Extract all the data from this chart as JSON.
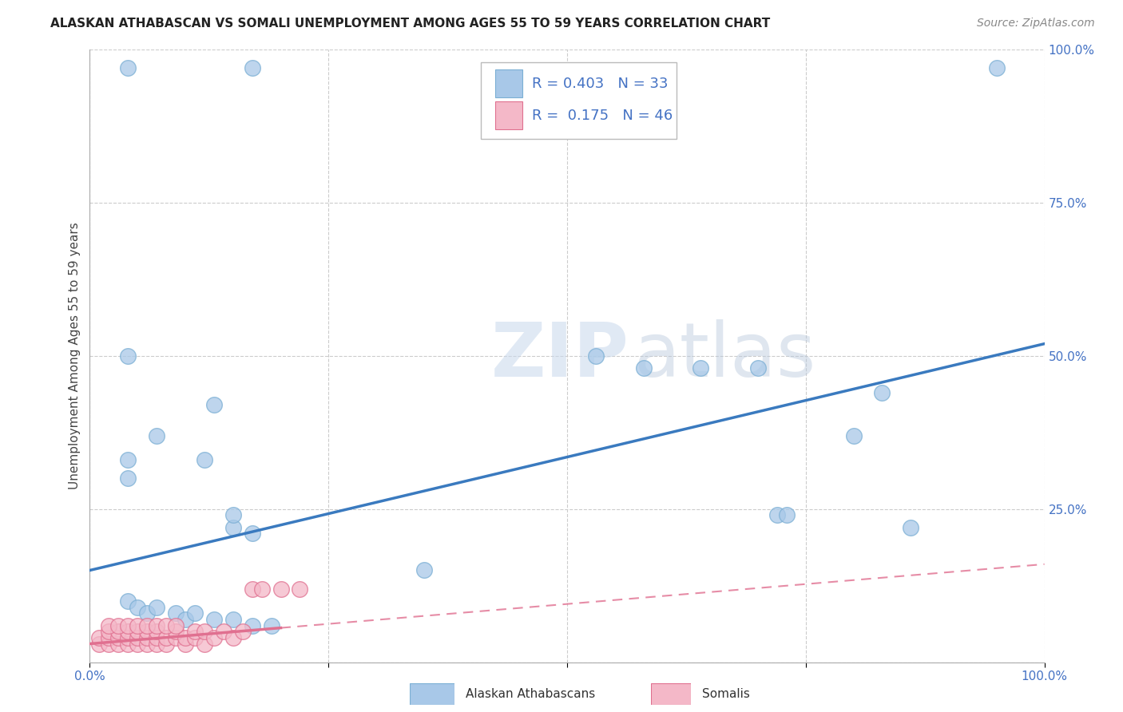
{
  "title": "ALASKAN ATHABASCAN VS SOMALI UNEMPLOYMENT AMONG AGES 55 TO 59 YEARS CORRELATION CHART",
  "source": "Source: ZipAtlas.com",
  "ylabel": "Unemployment Among Ages 55 to 59 years",
  "xlim": [
    0,
    1.0
  ],
  "ylim": [
    0,
    1.0
  ],
  "xticks": [
    0.0,
    0.25,
    0.5,
    0.75,
    1.0
  ],
  "xticklabels": [
    "0.0%",
    "",
    "",
    "",
    "100.0%"
  ],
  "yticks": [
    0.0,
    0.25,
    0.5,
    0.75,
    1.0
  ],
  "yticklabels": [
    "",
    "25.0%",
    "50.0%",
    "75.0%",
    "100.0%"
  ],
  "grid_color": "#cccccc",
  "background_color": "#ffffff",
  "watermark_zip": "ZIP",
  "watermark_atlas": "atlas",
  "alaskan_color": "#a8c8e8",
  "alaskan_edge_color": "#7bafd4",
  "alaskan_R": 0.403,
  "alaskan_N": 33,
  "alaskan_line_color": "#3a7abf",
  "somali_color": "#f4b8c8",
  "somali_edge_color": "#e07090",
  "somali_R": 0.175,
  "somali_N": 46,
  "somali_line_color": "#e07090",
  "alaskan_points": [
    [
      0.04,
      0.97
    ],
    [
      0.17,
      0.97
    ],
    [
      0.04,
      0.5
    ],
    [
      0.04,
      0.33
    ],
    [
      0.04,
      0.3
    ],
    [
      0.07,
      0.37
    ],
    [
      0.12,
      0.33
    ],
    [
      0.13,
      0.42
    ],
    [
      0.15,
      0.22
    ],
    [
      0.15,
      0.24
    ],
    [
      0.17,
      0.21
    ],
    [
      0.35,
      0.15
    ],
    [
      0.53,
      0.5
    ],
    [
      0.58,
      0.48
    ],
    [
      0.64,
      0.48
    ],
    [
      0.7,
      0.48
    ],
    [
      0.72,
      0.24
    ],
    [
      0.73,
      0.24
    ],
    [
      0.8,
      0.37
    ],
    [
      0.83,
      0.44
    ],
    [
      0.86,
      0.22
    ],
    [
      0.95,
      0.97
    ],
    [
      0.04,
      0.1
    ],
    [
      0.05,
      0.09
    ],
    [
      0.06,
      0.08
    ],
    [
      0.07,
      0.09
    ],
    [
      0.09,
      0.08
    ],
    [
      0.1,
      0.07
    ],
    [
      0.11,
      0.08
    ],
    [
      0.13,
      0.07
    ],
    [
      0.15,
      0.07
    ],
    [
      0.17,
      0.06
    ],
    [
      0.19,
      0.06
    ]
  ],
  "somali_points": [
    [
      0.01,
      0.03
    ],
    [
      0.01,
      0.04
    ],
    [
      0.02,
      0.03
    ],
    [
      0.02,
      0.04
    ],
    [
      0.02,
      0.05
    ],
    [
      0.03,
      0.03
    ],
    [
      0.03,
      0.04
    ],
    [
      0.03,
      0.05
    ],
    [
      0.04,
      0.03
    ],
    [
      0.04,
      0.04
    ],
    [
      0.04,
      0.05
    ],
    [
      0.05,
      0.03
    ],
    [
      0.05,
      0.04
    ],
    [
      0.05,
      0.05
    ],
    [
      0.06,
      0.03
    ],
    [
      0.06,
      0.04
    ],
    [
      0.06,
      0.05
    ],
    [
      0.07,
      0.03
    ],
    [
      0.07,
      0.04
    ],
    [
      0.07,
      0.05
    ],
    [
      0.08,
      0.03
    ],
    [
      0.08,
      0.04
    ],
    [
      0.09,
      0.04
    ],
    [
      0.09,
      0.05
    ],
    [
      0.1,
      0.03
    ],
    [
      0.1,
      0.04
    ],
    [
      0.11,
      0.04
    ],
    [
      0.11,
      0.05
    ],
    [
      0.12,
      0.03
    ],
    [
      0.12,
      0.05
    ],
    [
      0.13,
      0.04
    ],
    [
      0.14,
      0.05
    ],
    [
      0.15,
      0.04
    ],
    [
      0.16,
      0.05
    ],
    [
      0.17,
      0.12
    ],
    [
      0.18,
      0.12
    ],
    [
      0.2,
      0.12
    ],
    [
      0.22,
      0.12
    ],
    [
      0.02,
      0.06
    ],
    [
      0.03,
      0.06
    ],
    [
      0.04,
      0.06
    ],
    [
      0.05,
      0.06
    ],
    [
      0.06,
      0.06
    ],
    [
      0.07,
      0.06
    ],
    [
      0.08,
      0.06
    ],
    [
      0.09,
      0.06
    ]
  ],
  "legend_fontsize": 13,
  "tick_fontsize": 11,
  "title_fontsize": 11,
  "source_fontsize": 10,
  "axis_label_fontsize": 11,
  "tick_color": "#4472c4",
  "text_color": "#333333"
}
